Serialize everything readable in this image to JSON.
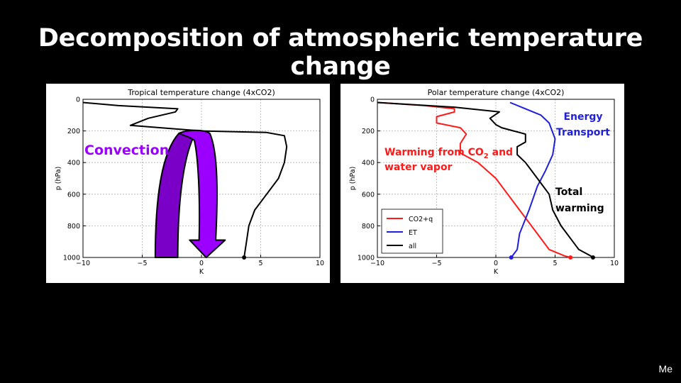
{
  "slide": {
    "title": "Decomposition of atmospheric temperature change",
    "footer": "Me"
  },
  "colors": {
    "background": "#000000",
    "co2q": "#ff1a1a",
    "et": "#1f1fdd",
    "all": "#000000",
    "convection": "#9b00ff",
    "convection_dark": "#7a00c8"
  },
  "annotations": {
    "convection": "Convection",
    "warming_line1": "Warming from CO",
    "warming_sub": "2",
    "warming_tail": " and",
    "warming_line2": "water vapor",
    "energy_line1": "Energy",
    "energy_line2": "Transport",
    "total_line1": "Total",
    "total_line2": "warming"
  },
  "chart_data": [
    {
      "type": "line",
      "title": "Tropical temperature change (4xCO2)",
      "xlabel": "K",
      "ylabel": "p (hPa)",
      "xlim": [
        -10,
        10
      ],
      "ylim": [
        1000,
        0
      ],
      "xticks": [
        "−10",
        "−5",
        "0",
        "5",
        "10"
      ],
      "yticks": [
        "0",
        "200",
        "400",
        "600",
        "800",
        "1000"
      ],
      "grid": true,
      "series": [
        {
          "name": "",
          "color": "#000000",
          "x": [
            -10,
            -7,
            -2,
            -2.2,
            -4.5,
            -6,
            0,
            5.5,
            7,
            7.2,
            7,
            6.5,
            5.5,
            4.5,
            4,
            3.8,
            3.6
          ],
          "y": [
            20,
            40,
            60,
            80,
            120,
            165,
            200,
            210,
            230,
            300,
            400,
            500,
            600,
            700,
            800,
            900,
            1000
          ],
          "end_marker": true
        }
      ]
    },
    {
      "type": "line",
      "title": "Polar temperature change (4xCO2)",
      "xlabel": "K",
      "ylabel": "p (hPa)",
      "xlim": [
        -10,
        10
      ],
      "ylim": [
        1000,
        0
      ],
      "xticks": [
        "−10",
        "−5",
        "0",
        "5",
        "10"
      ],
      "yticks": [
        "0",
        "200",
        "400",
        "600",
        "800",
        "1000"
      ],
      "grid": true,
      "legend": {
        "location": "lower-left",
        "entries": [
          "CO2+q",
          "ET",
          "all"
        ]
      },
      "series": [
        {
          "name": "CO2+q",
          "color": "#ff1a1a",
          "x": [
            -10,
            -6,
            -3.5,
            -3.5,
            -5,
            -5,
            -3,
            -2.5,
            -3,
            -3,
            -1.5,
            0,
            1,
            2,
            2.5,
            3.5,
            4.5,
            5.8,
            6.3
          ],
          "y": [
            20,
            40,
            60,
            80,
            110,
            150,
            180,
            220,
            280,
            340,
            400,
            500,
            600,
            700,
            750,
            850,
            950,
            990,
            1000
          ],
          "end_marker": true
        },
        {
          "name": "ET",
          "color": "#1f1fdd",
          "x": [
            1.2,
            2.5,
            3.8,
            4.5,
            5,
            4.8,
            4.2,
            3.5,
            2.8,
            2,
            1.8,
            1.3
          ],
          "y": [
            20,
            60,
            100,
            150,
            250,
            350,
            450,
            550,
            700,
            850,
            950,
            1000
          ],
          "end_marker": true
        },
        {
          "name": "all",
          "color": "#000000",
          "x": [
            -10,
            -3.5,
            0.3,
            -0.5,
            0,
            0.5,
            1.5,
            2,
            2.5,
            2.5,
            1.8,
            1.8,
            2.5,
            3.5,
            4.5,
            4.8,
            5.5,
            6.5,
            7,
            8,
            8.2
          ],
          "y": [
            20,
            50,
            80,
            120,
            160,
            180,
            200,
            210,
            220,
            270,
            300,
            350,
            400,
            500,
            600,
            700,
            800,
            900,
            950,
            990,
            1000
          ],
          "end_marker": true
        }
      ]
    }
  ]
}
